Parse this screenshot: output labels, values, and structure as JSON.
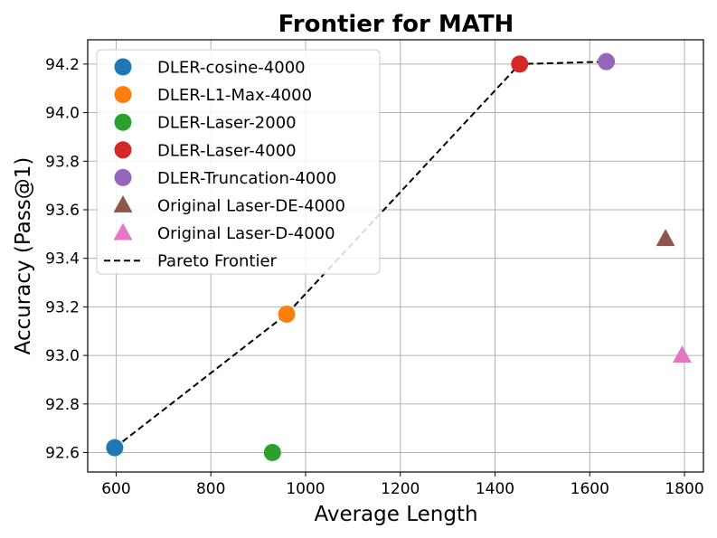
{
  "chart_data": {
    "type": "scatter",
    "title": "Frontier for MATH",
    "xlabel": "Average Length",
    "ylabel": "Accuracy (Pass@1)",
    "xlim": [
      540,
      1840
    ],
    "ylim": [
      92.52,
      94.3
    ],
    "xticks": [
      600,
      800,
      1000,
      1200,
      1400,
      1600,
      1800
    ],
    "yticks": [
      92.6,
      92.8,
      93.0,
      93.2,
      93.4,
      93.6,
      93.8,
      94.0,
      94.2
    ],
    "grid": true,
    "legend_position": "top-left",
    "series": [
      {
        "name": "DLER-cosine-4000",
        "marker": "circle",
        "color": "#1f77b4",
        "x": [
          597
        ],
        "y": [
          92.62
        ]
      },
      {
        "name": "DLER-L1-Max-4000",
        "marker": "circle",
        "color": "#ff7f0e",
        "x": [
          960
        ],
        "y": [
          93.17
        ]
      },
      {
        "name": "DLER-Laser-2000",
        "marker": "circle",
        "color": "#2ca02c",
        "x": [
          930
        ],
        "y": [
          92.6
        ]
      },
      {
        "name": "DLER-Laser-4000",
        "marker": "circle",
        "color": "#d62728",
        "x": [
          1452
        ],
        "y": [
          94.2
        ]
      },
      {
        "name": "DLER-Truncation-4000",
        "marker": "circle",
        "color": "#9467bd",
        "x": [
          1635
        ],
        "y": [
          94.21
        ]
      },
      {
        "name": "Original Laser-DE-4000",
        "marker": "triangle",
        "color": "#8c564b",
        "x": [
          1760
        ],
        "y": [
          93.48
        ]
      },
      {
        "name": "Original Laser-D-4000",
        "marker": "triangle",
        "color": "#e377c2",
        "x": [
          1795
        ],
        "y": [
          93.0
        ]
      }
    ],
    "frontier": {
      "name": "Pareto Frontier",
      "style": "dashed",
      "color": "#000000",
      "x": [
        597,
        960,
        1452,
        1635
      ],
      "y": [
        92.62,
        93.17,
        94.2,
        94.21
      ]
    }
  }
}
